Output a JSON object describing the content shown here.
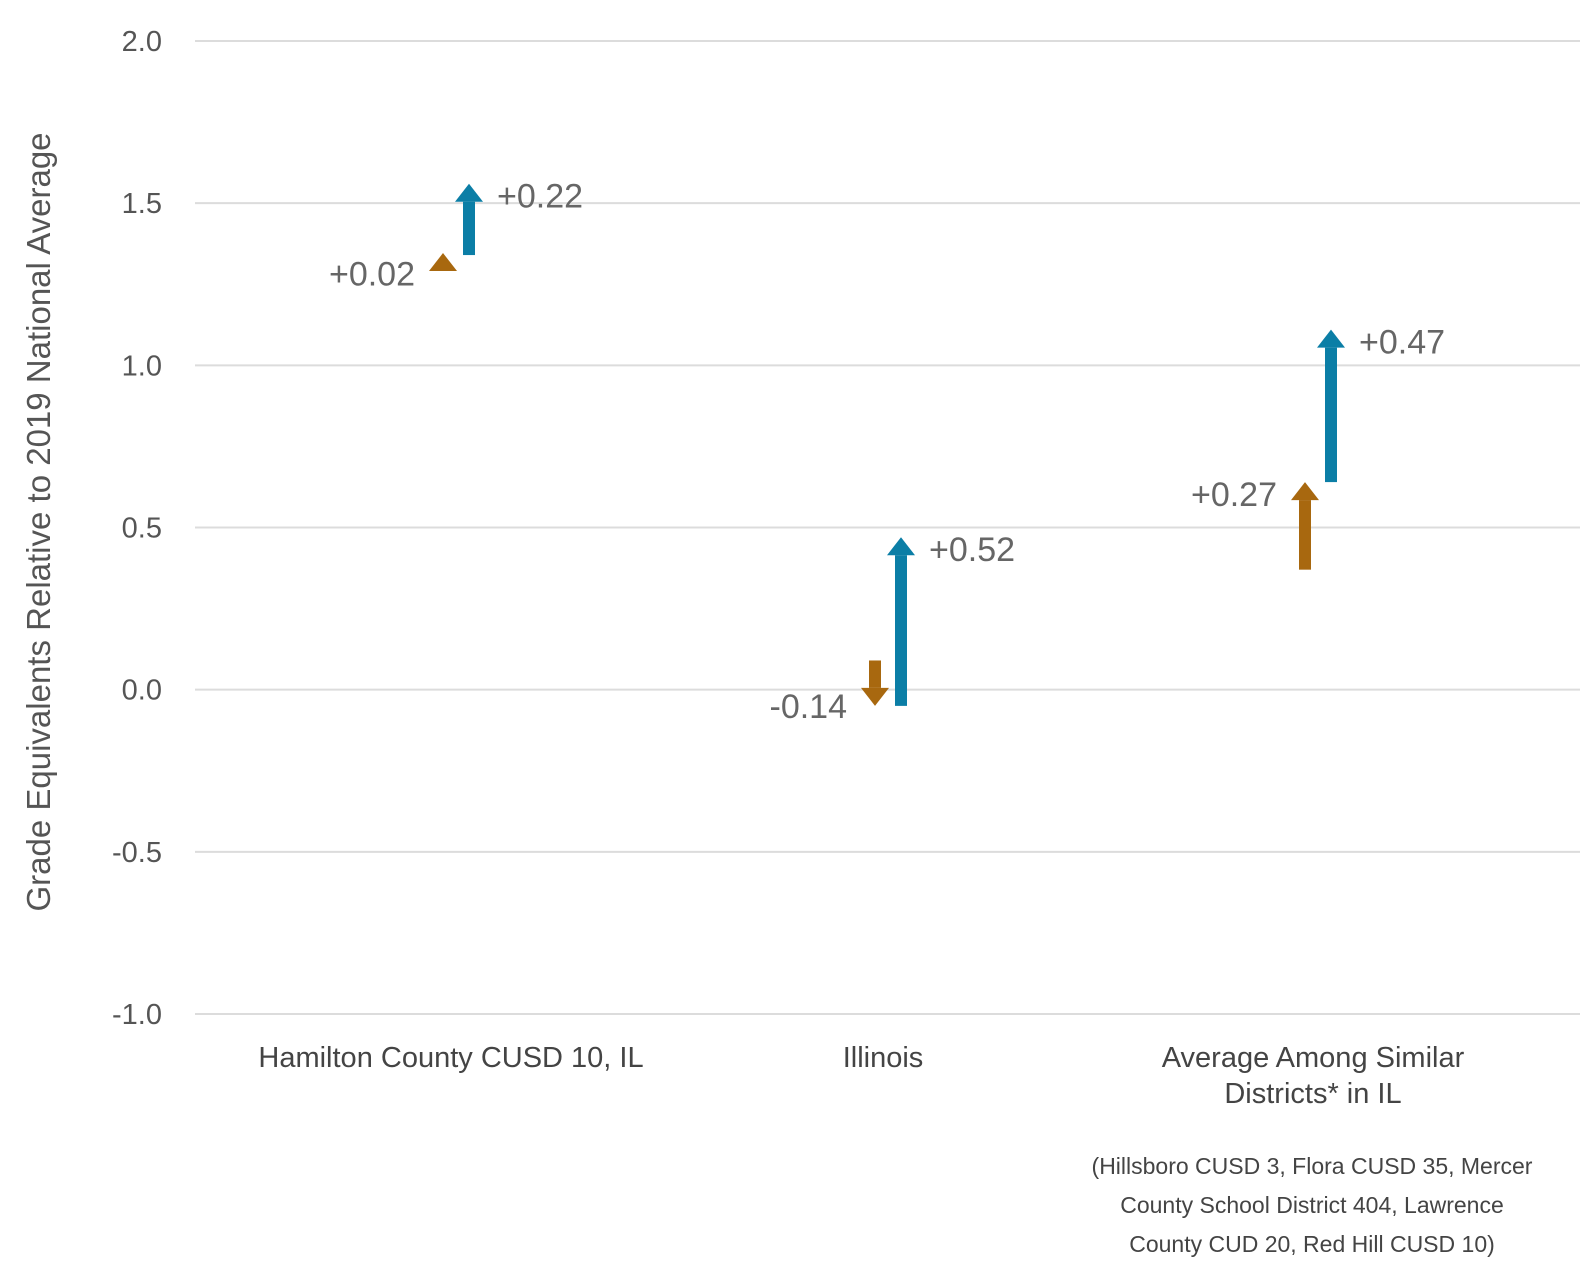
{
  "chart_data": {
    "type": "bar",
    "ylabel": "Grade Equivalents Relative to 2019 National Average",
    "ylim": [
      -1.0,
      2.0
    ],
    "yticks": [
      2.0,
      1.5,
      1.0,
      0.5,
      0.0,
      -0.5,
      -1.0
    ],
    "ytick_labels": [
      "2.0",
      "1.5",
      "1.0",
      "0.5",
      "0.0",
      "-0.5",
      "-1.0"
    ],
    "grid": true,
    "colors": {
      "first_change": "#a8680f",
      "second_change": "#0b7ea6"
    },
    "categories": [
      {
        "label_lines": [
          "Hamilton County CUSD 10, IL"
        ],
        "first": {
          "start": 1.3,
          "end": 1.32,
          "label": "+0.02"
        },
        "second": {
          "start": 1.34,
          "end": 1.56,
          "label": "+0.22"
        }
      },
      {
        "label_lines": [
          "Illinois"
        ],
        "first": {
          "start": 0.09,
          "end": -0.05,
          "label": "-0.14"
        },
        "second": {
          "start": -0.05,
          "end": 0.47,
          "label": "+0.52"
        }
      },
      {
        "label_lines": [
          "Average Among Similar",
          "Districts* in IL"
        ],
        "first": {
          "start": 0.37,
          "end": 0.64,
          "label": "+0.27"
        },
        "second": {
          "start": 0.64,
          "end": 1.11,
          "label": "+0.47"
        }
      }
    ],
    "footnote_lines": [
      "(Hillsboro CUSD 3, Flora CUSD 35, Mercer",
      "County School District 404, Lawrence",
      "County CUD 20, Red Hill CUSD 10)"
    ]
  }
}
